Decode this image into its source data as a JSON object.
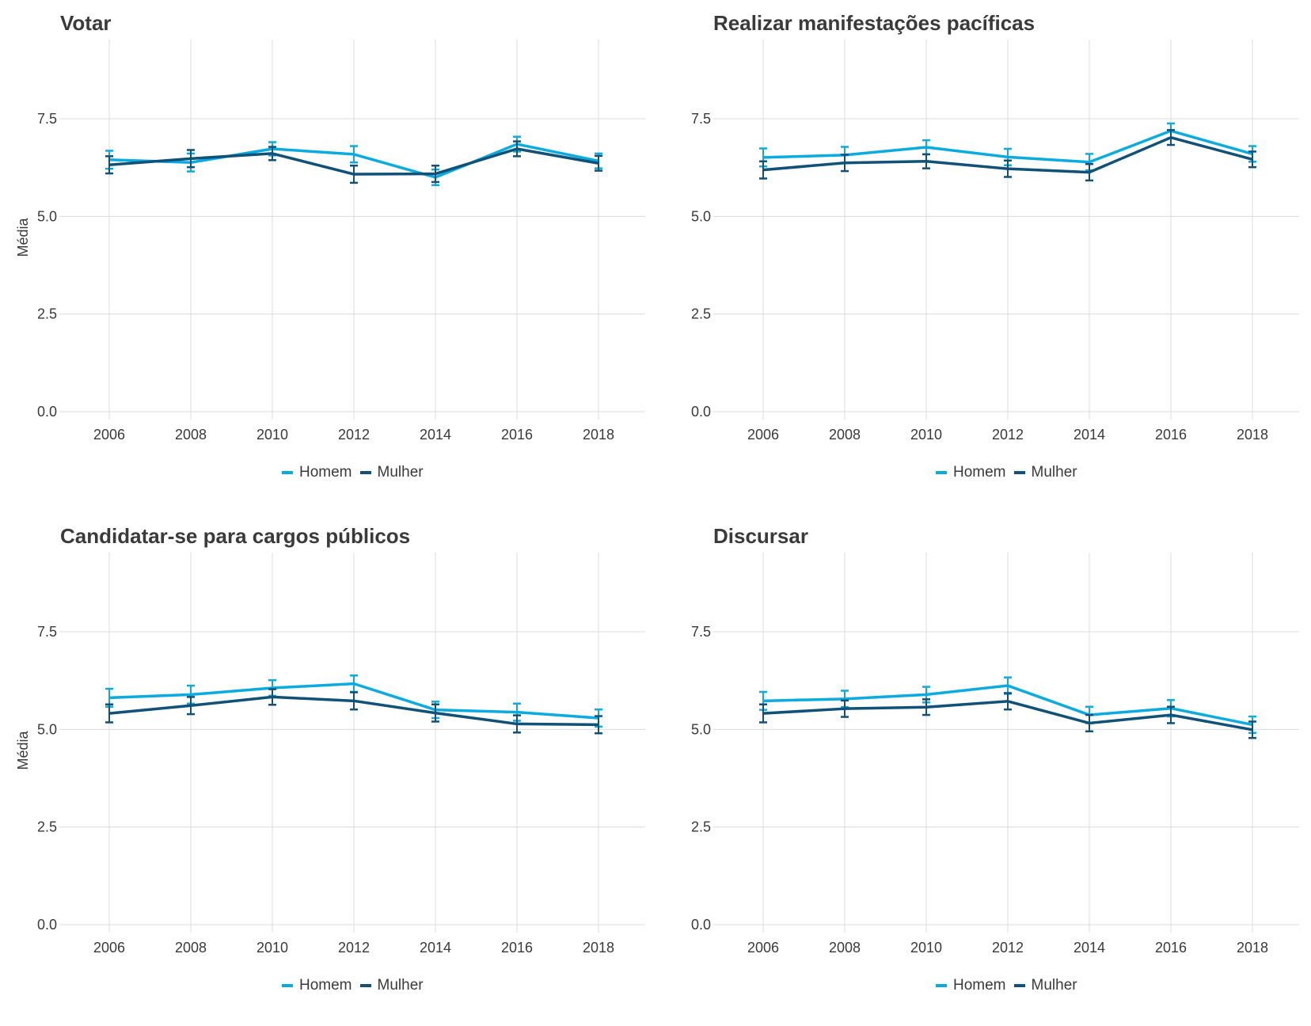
{
  "legend": {
    "items": [
      {
        "label": "Homem",
        "color": "#0aace0"
      },
      {
        "label": "Mulher",
        "color": "#0f5177"
      }
    ]
  },
  "chart_data": [
    {
      "type": "line",
      "title": "Votar",
      "xlabel": "",
      "ylabel": "Média",
      "x": [
        2006,
        2008,
        2010,
        2012,
        2014,
        2016,
        2018
      ],
      "ylim": [
        0,
        9.4
      ],
      "yticks": [
        "0.0",
        "2.5",
        "5.0",
        "7.5"
      ],
      "xticks": [
        "2006",
        "2008",
        "2010",
        "2012",
        "2014",
        "2016",
        "2018"
      ],
      "grid": true,
      "legend_position": "bottom",
      "series": [
        {
          "name": "Homem",
          "color": "#0aace0",
          "values": [
            6.45,
            6.38,
            6.73,
            6.59,
            6.0,
            6.85,
            6.42
          ],
          "lower": [
            6.22,
            6.15,
            6.56,
            6.38,
            5.8,
            6.66,
            6.23
          ],
          "upper": [
            6.68,
            6.61,
            6.9,
            6.8,
            6.2,
            7.04,
            6.61
          ]
        },
        {
          "name": "Mulher",
          "color": "#0f5177",
          "values": [
            6.32,
            6.48,
            6.61,
            6.08,
            6.09,
            6.73,
            6.36
          ],
          "lower": [
            6.1,
            6.26,
            6.44,
            5.86,
            5.88,
            6.54,
            6.17
          ],
          "upper": [
            6.54,
            6.7,
            6.78,
            6.3,
            6.3,
            6.92,
            6.55
          ]
        }
      ]
    },
    {
      "type": "line",
      "title": "Realizar manifestações pacíficas",
      "xlabel": "",
      "ylabel": "",
      "x": [
        2006,
        2008,
        2010,
        2012,
        2014,
        2016,
        2018
      ],
      "ylim": [
        0,
        9.4
      ],
      "yticks": [
        "0.0",
        "2.5",
        "5.0",
        "7.5"
      ],
      "xticks": [
        "2006",
        "2008",
        "2010",
        "2012",
        "2014",
        "2016",
        "2018"
      ],
      "grid": true,
      "legend_position": "bottom",
      "series": [
        {
          "name": "Homem",
          "color": "#0aace0",
          "values": [
            6.51,
            6.57,
            6.77,
            6.52,
            6.39,
            7.19,
            6.6
          ],
          "lower": [
            6.28,
            6.36,
            6.59,
            6.31,
            6.18,
            7.0,
            6.4
          ],
          "upper": [
            6.74,
            6.78,
            6.95,
            6.73,
            6.6,
            7.38,
            6.8
          ]
        },
        {
          "name": "Mulher",
          "color": "#0f5177",
          "values": [
            6.19,
            6.37,
            6.41,
            6.22,
            6.13,
            7.02,
            6.46
          ],
          "lower": [
            5.97,
            6.16,
            6.23,
            6.01,
            5.92,
            6.83,
            6.26
          ],
          "upper": [
            6.41,
            6.58,
            6.59,
            6.43,
            6.34,
            7.21,
            6.66
          ]
        }
      ]
    },
    {
      "type": "line",
      "title": "Candidatar-se para cargos públicos",
      "xlabel": "",
      "ylabel": "Média",
      "x": [
        2006,
        2008,
        2010,
        2012,
        2014,
        2016,
        2018
      ],
      "ylim": [
        0,
        9.4
      ],
      "yticks": [
        "0.0",
        "2.5",
        "5.0",
        "7.5"
      ],
      "xticks": [
        "2006",
        "2008",
        "2010",
        "2012",
        "2014",
        "2016",
        "2018"
      ],
      "grid": true,
      "legend_position": "bottom",
      "series": [
        {
          "name": "Homem",
          "color": "#0aace0",
          "values": [
            5.81,
            5.89,
            6.06,
            6.17,
            5.5,
            5.44,
            5.29
          ],
          "lower": [
            5.58,
            5.66,
            5.86,
            5.96,
            5.29,
            5.22,
            5.07
          ],
          "upper": [
            6.04,
            6.12,
            6.26,
            6.38,
            5.71,
            5.66,
            5.51
          ]
        },
        {
          "name": "Mulher",
          "color": "#0f5177",
          "values": [
            5.41,
            5.61,
            5.83,
            5.73,
            5.42,
            5.14,
            5.12
          ],
          "lower": [
            5.18,
            5.39,
            5.63,
            5.51,
            5.2,
            4.92,
            4.9
          ],
          "upper": [
            5.64,
            5.83,
            6.03,
            5.95,
            5.64,
            5.36,
            5.34
          ]
        }
      ]
    },
    {
      "type": "line",
      "title": "Discursar",
      "xlabel": "",
      "ylabel": "",
      "x": [
        2006,
        2008,
        2010,
        2012,
        2014,
        2016,
        2018
      ],
      "ylim": [
        0,
        9.4
      ],
      "yticks": [
        "0.0",
        "2.5",
        "5.0",
        "7.5"
      ],
      "xticks": [
        "2006",
        "2008",
        "2010",
        "2012",
        "2014",
        "2016",
        "2018"
      ],
      "grid": true,
      "legend_position": "bottom",
      "series": [
        {
          "name": "Homem",
          "color": "#0aace0",
          "values": [
            5.73,
            5.78,
            5.89,
            6.12,
            5.37,
            5.54,
            5.12
          ],
          "lower": [
            5.5,
            5.57,
            5.69,
            5.91,
            5.16,
            5.33,
            4.91
          ],
          "upper": [
            5.96,
            5.99,
            6.09,
            6.33,
            5.58,
            5.75,
            5.33
          ]
        },
        {
          "name": "Mulher",
          "color": "#0f5177",
          "values": [
            5.41,
            5.53,
            5.57,
            5.72,
            5.16,
            5.37,
            4.99
          ],
          "lower": [
            5.18,
            5.32,
            5.37,
            5.51,
            4.95,
            5.16,
            4.78
          ],
          "upper": [
            5.64,
            5.74,
            5.77,
            5.93,
            5.37,
            5.58,
            5.2
          ]
        }
      ]
    }
  ]
}
